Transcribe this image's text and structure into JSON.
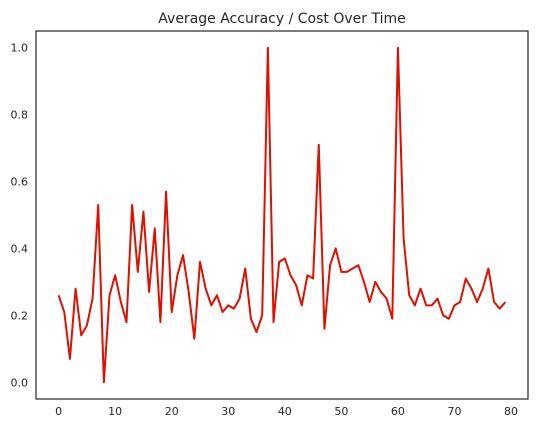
{
  "chart_data": {
    "type": "line",
    "title": "Average Accuracy / Cost Over Time",
    "xlabel": "",
    "ylabel": "",
    "xlim": [
      -4,
      83
    ],
    "ylim": [
      -0.05,
      1.05
    ],
    "xticks": [
      0,
      10,
      20,
      30,
      40,
      50,
      60,
      70,
      80
    ],
    "yticks": [
      0.0,
      0.2,
      0.4,
      0.6,
      0.8,
      1.0
    ],
    "xtick_labels": [
      "0",
      "10",
      "20",
      "30",
      "40",
      "50",
      "60",
      "70",
      "80"
    ],
    "ytick_labels": [
      "0.0",
      "0.2",
      "0.4",
      "0.6",
      "0.8",
      "1.0"
    ],
    "grid": false,
    "line_color": "#dd1100",
    "series": [
      {
        "x": [
          0,
          1,
          2,
          3,
          4,
          5,
          6,
          7,
          8,
          9,
          10,
          11,
          12,
          13,
          14,
          15,
          16,
          17,
          18,
          19,
          20,
          21,
          22,
          23,
          24,
          25,
          26,
          27,
          28,
          29,
          30,
          31,
          32,
          33,
          34,
          35,
          36,
          37,
          38,
          39,
          40,
          41,
          42,
          43,
          44,
          45,
          46,
          47,
          48,
          49,
          50,
          51,
          52,
          53,
          54,
          55,
          56,
          57,
          58,
          59,
          60,
          61,
          62,
          63,
          64,
          65,
          66,
          67,
          68,
          69,
          70,
          71,
          72,
          73,
          74,
          75,
          76,
          77,
          78,
          79
        ],
        "values": [
          0.26,
          0.21,
          0.07,
          0.28,
          0.14,
          0.17,
          0.25,
          0.53,
          0.0,
          0.26,
          0.32,
          0.24,
          0.18,
          0.53,
          0.33,
          0.51,
          0.27,
          0.46,
          0.18,
          0.57,
          0.21,
          0.32,
          0.38,
          0.27,
          0.13,
          0.36,
          0.28,
          0.23,
          0.26,
          0.21,
          0.23,
          0.22,
          0.25,
          0.34,
          0.19,
          0.15,
          0.2,
          1.0,
          0.18,
          0.36,
          0.37,
          0.32,
          0.29,
          0.23,
          0.32,
          0.31,
          0.71,
          0.16,
          0.35,
          0.4,
          0.33,
          0.33,
          0.34,
          0.35,
          0.3,
          0.24,
          0.3,
          0.27,
          0.25,
          0.19,
          1.0,
          0.43,
          0.26,
          0.23,
          0.28,
          0.23,
          0.23,
          0.25,
          0.2,
          0.19,
          0.23,
          0.24,
          0.31,
          0.28,
          0.24,
          0.28,
          0.34,
          0.24,
          0.22,
          0.24
        ]
      }
    ]
  }
}
